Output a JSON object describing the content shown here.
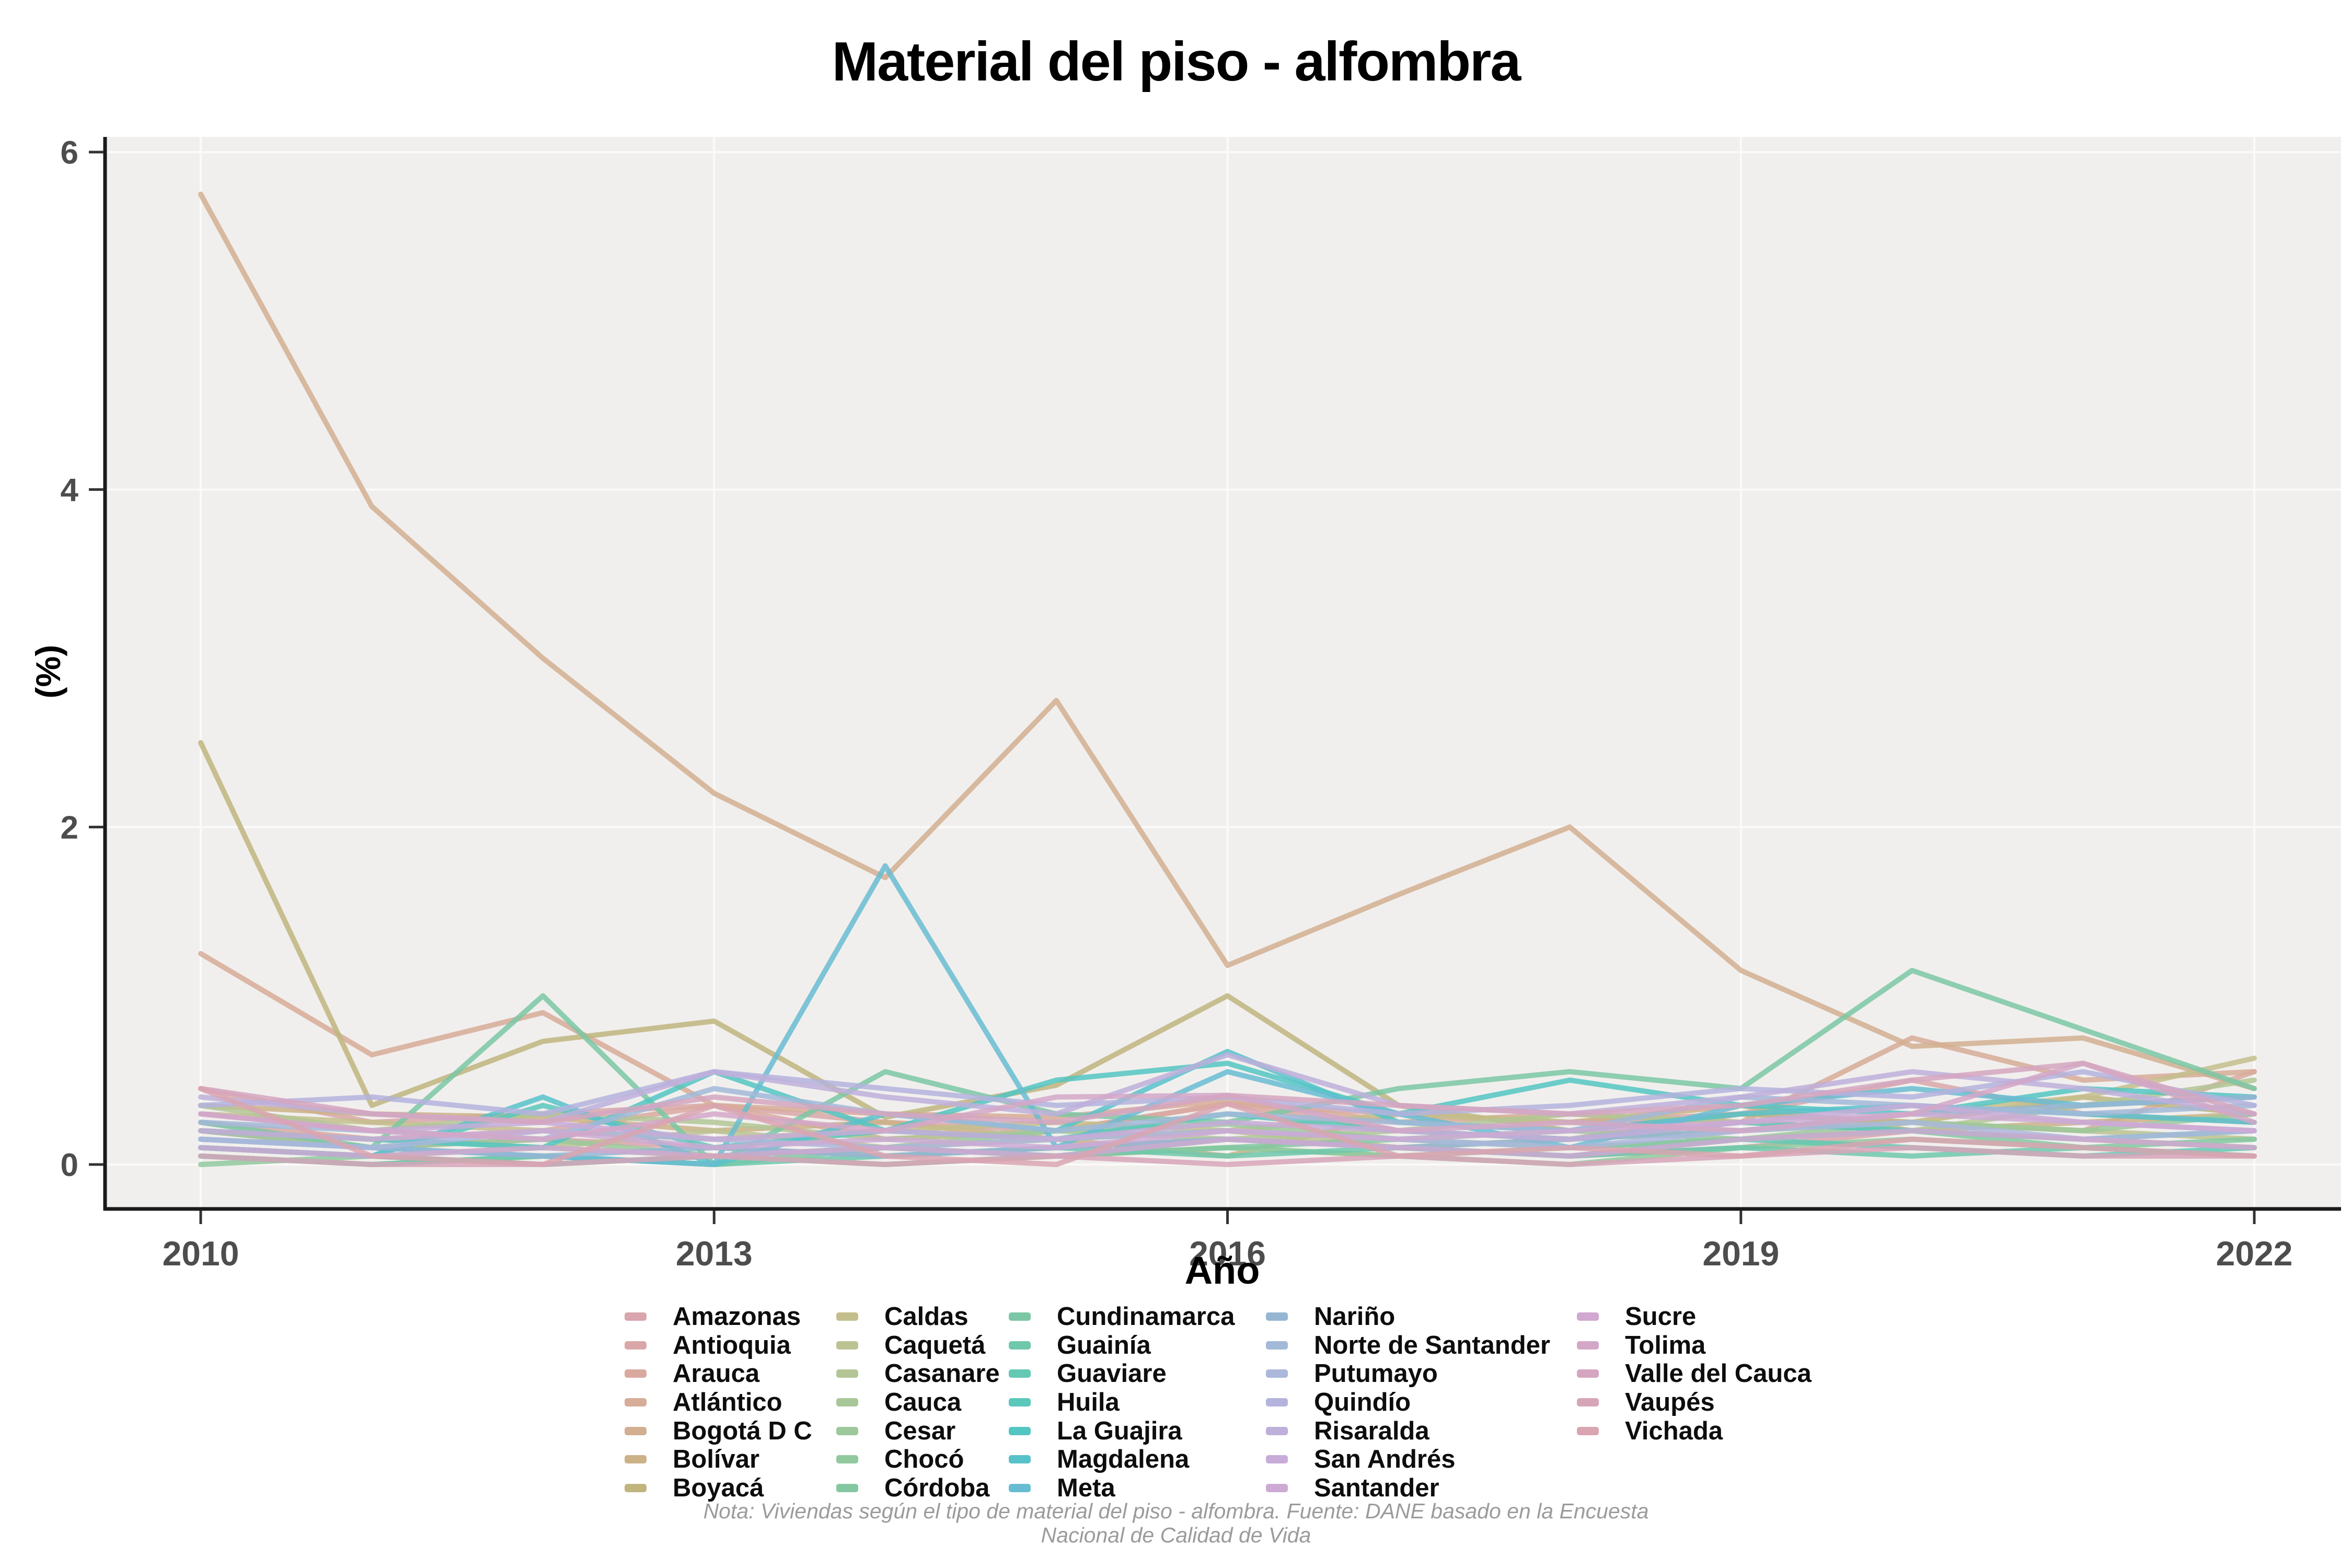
{
  "title": "Material del piso - alfombra",
  "axes": {
    "y_label": "(%)",
    "x_label": "Año"
  },
  "footnote": {
    "line1": "Nota: Viviendas según el tipo de material del piso - alfombra. Fuente: DANE basado en la Encuesta",
    "line2": "Nacional de Calidad de Vida"
  },
  "colors": {
    "panel_background": "#F1EFED",
    "gridline": "#FAFAF9",
    "axis_line": "#1a1a1a",
    "tick_label": "#4d4d4d",
    "footnote_text": "#9b9b9b"
  },
  "chart_data": {
    "type": "line",
    "title": "Material del piso - alfombra",
    "xlabel": "Año",
    "ylabel": "(%)",
    "x": [
      2010,
      2011,
      2012,
      2013,
      2014,
      2015,
      2016,
      2017,
      2018,
      2019,
      2020,
      2021,
      2022
    ],
    "x_tick_values": [
      2010,
      2013,
      2016,
      2019,
      2022
    ],
    "x_tick_labels": [
      "2010",
      "2013",
      "2016",
      "2019",
      "2022"
    ],
    "y_tick_values": [
      0,
      2,
      4,
      6
    ],
    "y_tick_labels": [
      "0",
      "2",
      "4",
      "6"
    ],
    "ylim": [
      0,
      6
    ],
    "grid": "major only, white on light-gray panel",
    "legend_position": "bottom",
    "legend_columns": [
      7,
      7,
      7,
      7,
      5
    ],
    "series": [
      {
        "name": "Amazonas",
        "color": "#D9A5AE",
        "values": [
          0.2,
          0.1,
          0.15,
          0.1,
          0.05,
          0.1,
          0.15,
          0.1,
          0.05,
          0.1,
          0.2,
          0.15,
          0.1
        ]
      },
      {
        "name": "Antioquia",
        "color": "#D9A7A8",
        "values": [
          0.45,
          0.25,
          0.3,
          0.35,
          0.25,
          0.2,
          0.36,
          0.3,
          0.25,
          0.3,
          0.5,
          0.3,
          0.25
        ]
      },
      {
        "name": "Arauca",
        "color": "#D9A9A0",
        "values": [
          0.25,
          0.15,
          0.2,
          0.35,
          0.15,
          0.2,
          0.36,
          0.2,
          0.15,
          0.3,
          0.25,
          0.2,
          0.55
        ]
      },
      {
        "name": "Atlántico",
        "color": "#D7AC98",
        "values": [
          1.25,
          0.65,
          0.9,
          0.35,
          0.3,
          0.28,
          0.38,
          0.25,
          0.3,
          0.25,
          0.75,
          0.5,
          0.55
        ]
      },
      {
        "name": "Bogotá D C",
        "color": "#D2AF90",
        "values": [
          5.75,
          3.9,
          3.0,
          2.2,
          1.7,
          2.75,
          1.18,
          1.6,
          2.0,
          1.15,
          0.7,
          0.75,
          0.45
        ]
      },
      {
        "name": "Bolívar",
        "color": "#CBB287",
        "values": [
          0.35,
          0.3,
          0.28,
          0.2,
          0.25,
          0.15,
          0.05,
          0.3,
          0.25,
          0.35,
          0.2,
          0.25,
          0.3
        ]
      },
      {
        "name": "Boyacá",
        "color": "#C0B57F",
        "values": [
          2.5,
          0.35,
          0.73,
          0.85,
          0.28,
          0.47,
          1.0,
          0.35,
          0.2,
          0.3,
          0.25,
          0.4,
          0.3
        ]
      },
      {
        "name": "Caldas",
        "color": "#C4BE8C",
        "values": [
          0.3,
          0.25,
          0.2,
          0.15,
          0.2,
          0.25,
          0.2,
          0.3,
          0.25,
          0.2,
          0.3,
          0.4,
          0.63
        ]
      },
      {
        "name": "Caquetá",
        "color": "#BCC292",
        "values": [
          0.2,
          0.15,
          0.1,
          0.2,
          0.1,
          0.15,
          0.2,
          0.1,
          0.15,
          0.2,
          0.25,
          0.2,
          0.15
        ]
      },
      {
        "name": "Casanare",
        "color": "#B3C595",
        "values": [
          0.35,
          0.2,
          0.3,
          0.25,
          0.15,
          0.2,
          0.15,
          0.2,
          0.3,
          0.25,
          0.2,
          0.35,
          0.5
        ]
      },
      {
        "name": "Cauca",
        "color": "#A8C798",
        "values": [
          0.1,
          0.05,
          0.1,
          0.05,
          0.0,
          0.05,
          0.1,
          0.05,
          0.1,
          0.15,
          0.2,
          0.15,
          0.1
        ]
      },
      {
        "name": "Cesar",
        "color": "#9CC89B",
        "values": [
          0.2,
          0.1,
          0.15,
          0.05,
          0.1,
          0.2,
          0.24,
          0.15,
          0.2,
          0.15,
          0.25,
          0.2,
          0.3
        ]
      },
      {
        "name": "Chocó",
        "color": "#90C99E",
        "values": [
          0.0,
          0.05,
          0.0,
          0.05,
          0.0,
          0.05,
          0.1,
          0.05,
          0.0,
          0.1,
          0.15,
          0.1,
          0.05
        ]
      },
      {
        "name": "Córdoba",
        "color": "#84C8A1",
        "values": [
          0.05,
          0.0,
          0.05,
          0.0,
          0.1,
          0.05,
          0.1,
          0.15,
          0.1,
          0.15,
          0.2,
          0.1,
          0.15
        ]
      },
      {
        "name": "Cundinamarca",
        "color": "#7BC7A5",
        "values": [
          0.25,
          0.1,
          1.0,
          0.0,
          0.55,
          0.3,
          0.25,
          0.45,
          0.55,
          0.45,
          1.15,
          0.8,
          0.45
        ]
      },
      {
        "name": "Guainía",
        "color": "#70C8AC",
        "values": [
          0.05,
          0.0,
          0.05,
          0.0,
          0.05,
          0.1,
          0.05,
          0.1,
          0.05,
          0.1,
          0.05,
          0.1,
          0.05
        ]
      },
      {
        "name": "Guaviare",
        "color": "#64C8B3",
        "values": [
          0.1,
          0.05,
          0.0,
          0.05,
          0.1,
          0.05,
          0.15,
          0.1,
          0.05,
          0.15,
          0.1,
          0.05,
          0.1
        ]
      },
      {
        "name": "Huila",
        "color": "#5AC8BB",
        "values": [
          0.1,
          0.05,
          0.35,
          0.1,
          0.2,
          0.15,
          0.3,
          0.2,
          0.15,
          0.25,
          0.2,
          0.15,
          0.2
        ]
      },
      {
        "name": "La Guajira",
        "color": "#54C6C2",
        "values": [
          0.2,
          0.15,
          0.1,
          0.55,
          0.2,
          0.5,
          0.6,
          0.3,
          0.5,
          0.35,
          0.3,
          0.45,
          0.4
        ]
      },
      {
        "name": "Magdalena",
        "color": "#58C2CA",
        "values": [
          0.1,
          0.05,
          0.4,
          0.0,
          0.3,
          0.2,
          0.67,
          0.25,
          0.2,
          0.3,
          0.35,
          0.3,
          0.25
        ]
      },
      {
        "name": "Meta",
        "color": "#68BCD2",
        "values": [
          0.15,
          0.1,
          0.05,
          0.0,
          1.77,
          0.1,
          0.55,
          0.3,
          0.1,
          0.35,
          0.45,
          0.35,
          0.4
        ]
      },
      {
        "name": "Nariño",
        "color": "#95B6D2",
        "values": [
          0.15,
          0.1,
          0.05,
          0.1,
          0.05,
          0.1,
          0.15,
          0.1,
          0.15,
          0.2,
          0.3,
          0.35,
          0.4
        ]
      },
      {
        "name": "Norte de Santander",
        "color": "#A2B9D8",
        "values": [
          0.25,
          0.2,
          0.15,
          0.45,
          0.3,
          0.2,
          0.3,
          0.25,
          0.2,
          0.4,
          0.35,
          0.3,
          0.35
        ]
      },
      {
        "name": "Putumayo",
        "color": "#ABB7DB",
        "values": [
          0.15,
          0.1,
          0.2,
          0.15,
          0.1,
          0.15,
          0.2,
          0.15,
          0.1,
          0.2,
          0.25,
          0.15,
          0.2
        ]
      },
      {
        "name": "Quindío",
        "color": "#B4B3DD",
        "values": [
          0.35,
          0.4,
          0.3,
          0.55,
          0.45,
          0.35,
          0.4,
          0.3,
          0.35,
          0.45,
          0.4,
          0.55,
          0.35
        ]
      },
      {
        "name": "Risaralda",
        "color": "#BEAFDB",
        "values": [
          0.4,
          0.3,
          0.25,
          0.55,
          0.4,
          0.3,
          0.65,
          0.35,
          0.3,
          0.4,
          0.55,
          0.45,
          0.3
        ]
      },
      {
        "name": "San Andrés",
        "color": "#C7ACD8",
        "values": [
          0.3,
          0.2,
          0.25,
          0.15,
          0.2,
          0.15,
          0.25,
          0.2,
          0.15,
          0.25,
          0.35,
          0.25,
          0.2
        ]
      },
      {
        "name": "Santander",
        "color": "#CDAAD3",
        "values": [
          0.2,
          0.15,
          0.2,
          0.1,
          0.15,
          0.1,
          0.2,
          0.15,
          0.2,
          0.25,
          0.3,
          0.25,
          0.2
        ]
      },
      {
        "name": "Sucre",
        "color": "#D0A8D0",
        "values": [
          0.1,
          0.05,
          0.1,
          0.05,
          0.1,
          0.05,
          0.15,
          0.1,
          0.05,
          0.15,
          0.2,
          0.15,
          0.1
        ]
      },
      {
        "name": "Tolima",
        "color": "#D3A7C8",
        "values": [
          0.3,
          0.2,
          0.15,
          0.3,
          0.2,
          0.4,
          0.41,
          0.2,
          0.25,
          0.2,
          0.3,
          0.6,
          0.25
        ]
      },
      {
        "name": "Valle del Cauca",
        "color": "#D5A6C0",
        "values": [
          0.45,
          0.3,
          0.25,
          0.4,
          0.3,
          0.25,
          0.41,
          0.35,
          0.3,
          0.35,
          0.5,
          0.6,
          0.3
        ]
      },
      {
        "name": "Vaupés",
        "color": "#D7A5B8",
        "values": [
          0.05,
          0.0,
          0.0,
          0.05,
          0.0,
          0.05,
          0.0,
          0.05,
          0.0,
          0.05,
          0.1,
          0.05,
          0.05
        ]
      },
      {
        "name": "Vichada",
        "color": "#D9A5B1",
        "values": [
          0.45,
          0.05,
          0.0,
          0.35,
          0.05,
          0.0,
          0.36,
          0.05,
          0.1,
          0.05,
          0.15,
          0.1,
          0.05
        ]
      }
    ]
  }
}
